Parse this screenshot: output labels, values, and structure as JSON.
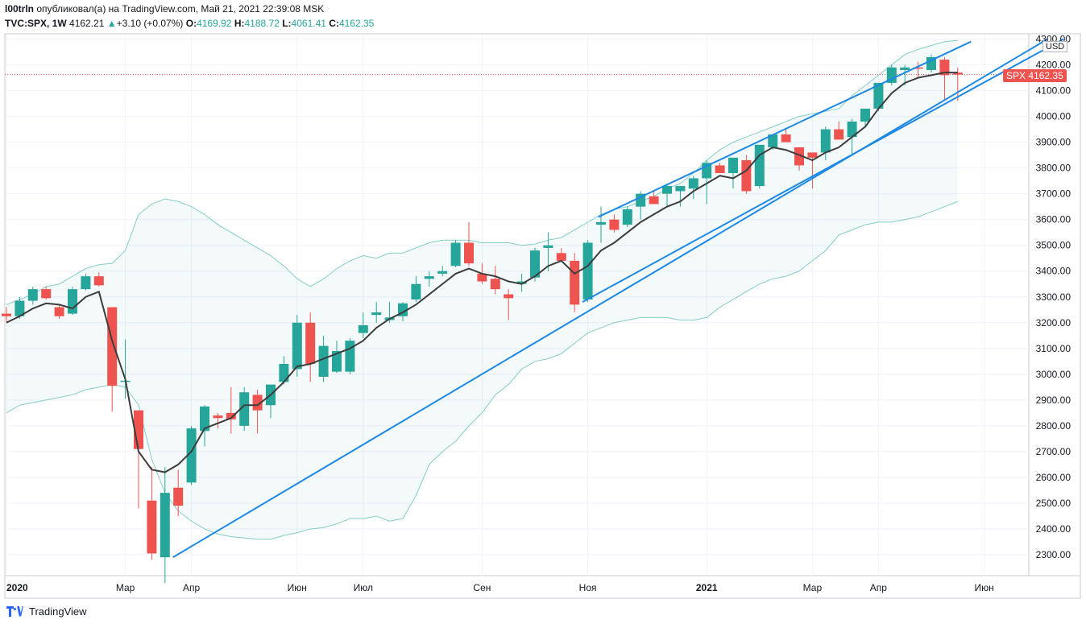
{
  "header": {
    "author": "l00trln",
    "published": "опубликовал(а) на TradingView.com, Май 21, 2021 22:39:08 MSK",
    "symbol": "TVC:SPX, 1W",
    "last": "4162.21",
    "change_arrow": "▲",
    "change": "+3.10 (+0.07%)",
    "o_label": "O:",
    "o": "4169.92",
    "h_label": "H:",
    "h": "4188.72",
    "l_label": "L:",
    "l": "4061.41",
    "c_label": "C:",
    "c": "4162.35"
  },
  "price_tag": {
    "symbol": "SPX",
    "value": "4162.35"
  },
  "currency": "USD",
  "footer": {
    "brand": "TradingView"
  },
  "colors": {
    "up": "#26a69a",
    "down": "#ef5350",
    "trend": "#1e88e5",
    "ma": "#3d3d3d",
    "band": "#26a69a"
  },
  "chart_data": {
    "type": "candlestick",
    "timeframe": "1W",
    "ylim": [
      2200,
      4300
    ],
    "y_ticks": [
      2300,
      2400,
      2500,
      2600,
      2700,
      2800,
      2900,
      3000,
      3100,
      3200,
      3300,
      3400,
      3500,
      3600,
      3700,
      3800,
      3900,
      4000,
      4100,
      4200,
      4300
    ],
    "x_labels": [
      {
        "label": "2020",
        "week": 0,
        "bold": true
      },
      {
        "label": "Мар",
        "week": 9
      },
      {
        "label": "Апр",
        "week": 14
      },
      {
        "label": "Июн",
        "week": 22
      },
      {
        "label": "Июл",
        "week": 27
      },
      {
        "label": "Сен",
        "week": 36
      },
      {
        "label": "Ноя",
        "week": 44
      },
      {
        "label": "2021",
        "week": 53,
        "bold": true
      },
      {
        "label": "Мар",
        "week": 61
      },
      {
        "label": "Апр",
        "week": 66
      },
      {
        "label": "Июн",
        "week": 74
      }
    ],
    "candles": [
      [
        3235,
        3260,
        3200,
        3225
      ],
      [
        3225,
        3300,
        3215,
        3285
      ],
      [
        3285,
        3340,
        3270,
        3330
      ],
      [
        3330,
        3340,
        3290,
        3295
      ],
      [
        3260,
        3270,
        3215,
        3225
      ],
      [
        3235,
        3340,
        3230,
        3330
      ],
      [
        3330,
        3390,
        3325,
        3380
      ],
      [
        3380,
        3395,
        3340,
        3345
      ],
      [
        3260,
        3260,
        2855,
        2955
      ],
      [
        2975,
        3135,
        2905,
        2975
      ],
      [
        2860,
        2860,
        2480,
        2710
      ],
      [
        2510,
        2640,
        2280,
        2305
      ],
      [
        2290,
        2640,
        2190,
        2540
      ],
      [
        2560,
        2630,
        2450,
        2490
      ],
      [
        2580,
        2800,
        2570,
        2790
      ],
      [
        2780,
        2880,
        2720,
        2875
      ],
      [
        2840,
        2850,
        2790,
        2830
      ],
      [
        2850,
        2950,
        2770,
        2825
      ],
      [
        2800,
        2950,
        2780,
        2930
      ],
      [
        2920,
        2940,
        2770,
        2860
      ],
      [
        2880,
        2960,
        2830,
        2960
      ],
      [
        2970,
        3070,
        2960,
        3040
      ],
      [
        3020,
        3230,
        2990,
        3200
      ],
      [
        3200,
        3240,
        2970,
        3040
      ],
      [
        2990,
        3150,
        2970,
        3110
      ],
      [
        3010,
        3130,
        3005,
        3090
      ],
      [
        3010,
        3140,
        3000,
        3130
      ],
      [
        3160,
        3240,
        3140,
        3190
      ],
      [
        3230,
        3280,
        3200,
        3240
      ],
      [
        3210,
        3280,
        3200,
        3220
      ],
      [
        3225,
        3280,
        3205,
        3275
      ],
      [
        3290,
        3380,
        3280,
        3350
      ],
      [
        3370,
        3400,
        3340,
        3380
      ],
      [
        3390,
        3420,
        3380,
        3400
      ],
      [
        3420,
        3520,
        3415,
        3510
      ],
      [
        3510,
        3590,
        3420,
        3430
      ],
      [
        3390,
        3430,
        3350,
        3360
      ],
      [
        3370,
        3420,
        3310,
        3330
      ],
      [
        3310,
        3330,
        3210,
        3295
      ],
      [
        3350,
        3390,
        3320,
        3360
      ],
      [
        3375,
        3490,
        3360,
        3480
      ],
      [
        3490,
        3550,
        3400,
        3500
      ],
      [
        3470,
        3490,
        3450,
        3440
      ],
      [
        3440,
        3470,
        3240,
        3270
      ],
      [
        3290,
        3520,
        3280,
        3510
      ],
      [
        3580,
        3650,
        3510,
        3590
      ],
      [
        3600,
        3620,
        3550,
        3560
      ],
      [
        3580,
        3650,
        3570,
        3640
      ],
      [
        3650,
        3710,
        3600,
        3700
      ],
      [
        3690,
        3710,
        3660,
        3660
      ],
      [
        3700,
        3740,
        3650,
        3730
      ],
      [
        3710,
        3730,
        3650,
        3730
      ],
      [
        3720,
        3770,
        3680,
        3760
      ],
      [
        3760,
        3830,
        3660,
        3820
      ],
      [
        3810,
        3820,
        3790,
        3780
      ],
      [
        3780,
        3830,
        3720,
        3840
      ],
      [
        3830,
        3850,
        3700,
        3710
      ],
      [
        3730,
        3870,
        3720,
        3890
      ],
      [
        3880,
        3930,
        3870,
        3930
      ],
      [
        3930,
        3950,
        3900,
        3900
      ],
      [
        3880,
        3880,
        3790,
        3810
      ],
      [
        3860,
        3850,
        3720,
        3840
      ],
      [
        3860,
        3960,
        3830,
        3950
      ],
      [
        3950,
        3980,
        3930,
        3910
      ],
      [
        3920,
        3990,
        3850,
        3980
      ],
      [
        3980,
        4030,
        3960,
        4030
      ],
      [
        4030,
        4130,
        4020,
        4130
      ],
      [
        4130,
        4200,
        4120,
        4190
      ],
      [
        4180,
        4200,
        4120,
        4190
      ],
      [
        4190,
        4210,
        4150,
        4185
      ],
      [
        4180,
        4240,
        4170,
        4230
      ],
      [
        4220,
        4230,
        4060,
        4160
      ],
      [
        4170,
        4190,
        4060,
        4162
      ]
    ],
    "ma": [
      3200,
      3225,
      3255,
      3275,
      3270,
      3255,
      3300,
      3320,
      3130,
      2980,
      2700,
      2630,
      2620,
      2650,
      2700,
      2790,
      2810,
      2830,
      2880,
      2880,
      2920,
      2970,
      3030,
      3040,
      3060,
      3080,
      3100,
      3130,
      3180,
      3215,
      3240,
      3270,
      3310,
      3350,
      3390,
      3410,
      3390,
      3380,
      3360,
      3350,
      3380,
      3420,
      3440,
      3390,
      3420,
      3480,
      3510,
      3550,
      3590,
      3620,
      3650,
      3670,
      3710,
      3740,
      3770,
      3760,
      3790,
      3850,
      3880,
      3870,
      3850,
      3830,
      3860,
      3880,
      3920,
      3960,
      4030,
      4090,
      4130,
      4150,
      4160,
      4170,
      4170
    ],
    "band_upper": [
      3270,
      3290,
      3310,
      3340,
      3350,
      3380,
      3410,
      3425,
      3430,
      3480,
      3620,
      3660,
      3680,
      3670,
      3650,
      3620,
      3580,
      3550,
      3520,
      3490,
      3460,
      3420,
      3370,
      3340,
      3370,
      3410,
      3440,
      3460,
      3450,
      3470,
      3470,
      3490,
      3510,
      3520,
      3520,
      3520,
      3510,
      3510,
      3510,
      3500,
      3505,
      3520,
      3530,
      3560,
      3590,
      3620,
      3640,
      3650,
      3670,
      3690,
      3720,
      3740,
      3780,
      3830,
      3870,
      3900,
      3920,
      3940,
      3960,
      3980,
      4000,
      4010,
      4020,
      4030,
      4080,
      4120,
      4160,
      4200,
      4240,
      4260,
      4275,
      4290,
      4295
    ],
    "band_lower": [
      2850,
      2880,
      2890,
      2900,
      2910,
      2920,
      2940,
      2950,
      2960,
      2950,
      2880,
      2670,
      2540,
      2470,
      2430,
      2400,
      2380,
      2370,
      2365,
      2360,
      2360,
      2375,
      2385,
      2400,
      2405,
      2420,
      2440,
      2440,
      2450,
      2430,
      2440,
      2530,
      2650,
      2700,
      2740,
      2800,
      2850,
      2920,
      2960,
      3020,
      3050,
      3060,
      3080,
      3120,
      3160,
      3180,
      3200,
      3210,
      3220,
      3220,
      3220,
      3210,
      3210,
      3220,
      3260,
      3290,
      3320,
      3350,
      3370,
      3380,
      3400,
      3440,
      3480,
      3540,
      3560,
      3580,
      3590,
      3590,
      3600,
      3610,
      3630,
      3650,
      3670
    ],
    "trend_lines": [
      {
        "name": "lower",
        "from": [
          12.6,
          2290
        ],
        "to": [
          78.8,
          4300
        ]
      },
      {
        "name": "upper",
        "from": [
          44.8,
          3610
        ],
        "to": [
          73.0,
          4290
        ]
      },
      {
        "name": "lower-short",
        "from": [
          43.6,
          3280
        ],
        "to": [
          80.0,
          4300
        ]
      }
    ],
    "last_price": 4162.35
  }
}
